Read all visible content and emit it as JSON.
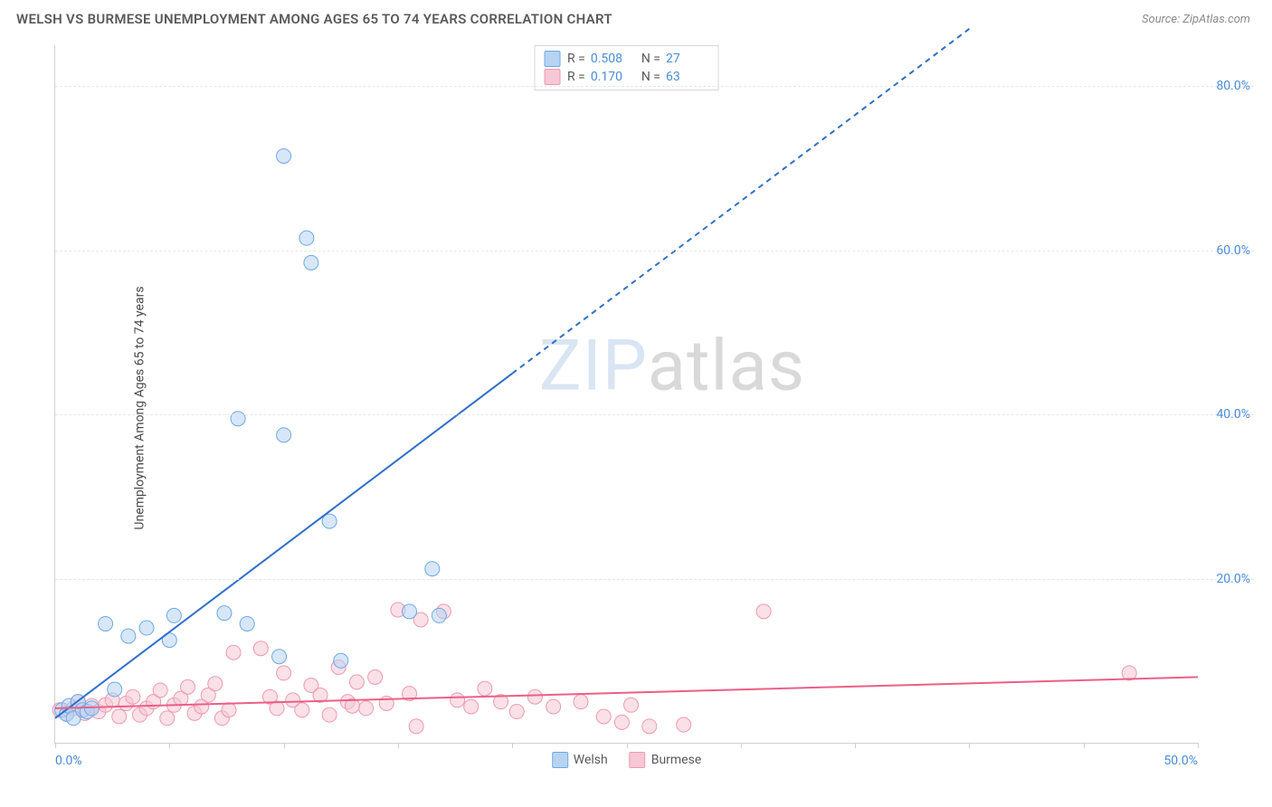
{
  "header": {
    "title": "WELSH VS BURMESE UNEMPLOYMENT AMONG AGES 65 TO 74 YEARS CORRELATION CHART",
    "source": "Source: ZipAtlas.com"
  },
  "watermark": {
    "part1": "ZIP",
    "part2": "atlas"
  },
  "chart": {
    "type": "scatter",
    "y_label": "Unemployment Among Ages 65 to 74 years",
    "xlim": [
      0,
      50
    ],
    "ylim": [
      0,
      85
    ],
    "x_ticks": [
      0,
      5,
      10,
      15,
      20,
      25,
      30,
      35,
      40,
      45,
      50
    ],
    "x_tick_labels": {
      "0": "0.0%",
      "50": "50.0%"
    },
    "y_grid": [
      20,
      40,
      60,
      80
    ],
    "y_tick_labels": {
      "20": "20.0%",
      "40": "40.0%",
      "60": "60.0%",
      "80": "80.0%"
    },
    "background_color": "#ffffff",
    "grid_color": "#e8e8e8",
    "axis_color": "#d0d0d0",
    "tick_label_color": "#4a8cd8",
    "label_fontsize": 14,
    "marker_radius": 8,
    "marker_opacity": 0.55,
    "line_width": 2,
    "series": [
      {
        "name": "Welsh",
        "color_fill": "#b7d3f2",
        "color_stroke": "#6ea8e8",
        "R": "0.508",
        "N": "27",
        "trend": {
          "x1": 0,
          "y1": 3,
          "x2": 20,
          "y2": 45,
          "dash_from_x": 20,
          "x3": 40,
          "y3": 87
        },
        "line_color": "#2f6fc9",
        "points": [
          [
            0.3,
            4
          ],
          [
            0.5,
            3.5
          ],
          [
            0.6,
            4.5
          ],
          [
            0.8,
            3
          ],
          [
            1,
            5
          ],
          [
            1.2,
            4
          ],
          [
            1.4,
            3.8
          ],
          [
            1.6,
            4.2
          ],
          [
            2.2,
            14.5
          ],
          [
            2.6,
            6.5
          ],
          [
            3.2,
            13
          ],
          [
            4.0,
            14
          ],
          [
            5.0,
            12.5
          ],
          [
            5.2,
            15.5
          ],
          [
            7.4,
            15.8
          ],
          [
            8.4,
            14.5
          ],
          [
            8.0,
            39.5
          ],
          [
            9.8,
            10.5
          ],
          [
            10.0,
            37.5
          ],
          [
            11.2,
            58.5
          ],
          [
            10.0,
            71.5
          ],
          [
            11.0,
            61.5
          ],
          [
            12.5,
            10.0
          ],
          [
            12.0,
            27.0
          ],
          [
            15.5,
            16.0
          ],
          [
            16.5,
            21.2
          ],
          [
            16.8,
            15.5
          ]
        ]
      },
      {
        "name": "Burmese",
        "color_fill": "#f6c7d4",
        "color_stroke": "#ec9ab1",
        "R": "0.170",
        "N": "63",
        "trend": {
          "x1": 0,
          "y1": 4.2,
          "x2": 50,
          "y2": 8.0
        },
        "line_color": "#ec5f86",
        "points": [
          [
            0.2,
            4
          ],
          [
            0.5,
            3.5
          ],
          [
            0.8,
            4.2
          ],
          [
            1.0,
            5
          ],
          [
            1.3,
            3.6
          ],
          [
            1.6,
            4.5
          ],
          [
            1.9,
            3.8
          ],
          [
            2.2,
            4.6
          ],
          [
            2.5,
            5.2
          ],
          [
            2.8,
            3.2
          ],
          [
            3.1,
            4.8
          ],
          [
            3.4,
            5.6
          ],
          [
            3.7,
            3.4
          ],
          [
            4.0,
            4.2
          ],
          [
            4.3,
            5.0
          ],
          [
            4.6,
            6.4
          ],
          [
            4.9,
            3.0
          ],
          [
            5.2,
            4.6
          ],
          [
            5.5,
            5.4
          ],
          [
            5.8,
            6.8
          ],
          [
            6.1,
            3.6
          ],
          [
            6.4,
            4.4
          ],
          [
            6.7,
            5.8
          ],
          [
            7.0,
            7.2
          ],
          [
            7.3,
            3.0
          ],
          [
            7.6,
            4.0
          ],
          [
            7.8,
            11.0
          ],
          [
            9.0,
            11.5
          ],
          [
            9.4,
            5.6
          ],
          [
            9.7,
            4.2
          ],
          [
            10.0,
            8.5
          ],
          [
            10.4,
            5.2
          ],
          [
            10.8,
            4.0
          ],
          [
            11.2,
            7.0
          ],
          [
            11.6,
            5.8
          ],
          [
            12.0,
            3.4
          ],
          [
            12.4,
            9.2
          ],
          [
            12.8,
            5.0
          ],
          [
            13.2,
            7.4
          ],
          [
            13.6,
            4.2
          ],
          [
            14.0,
            8.0
          ],
          [
            14.5,
            4.8
          ],
          [
            15.0,
            16.2
          ],
          [
            15.5,
            6.0
          ],
          [
            16.0,
            15.0
          ],
          [
            17.0,
            16.0
          ],
          [
            17.6,
            5.2
          ],
          [
            18.2,
            4.4
          ],
          [
            18.8,
            6.6
          ],
          [
            19.5,
            5.0
          ],
          [
            20.2,
            3.8
          ],
          [
            21.0,
            5.6
          ],
          [
            21.8,
            4.4
          ],
          [
            23.0,
            5.0
          ],
          [
            24.0,
            3.2
          ],
          [
            24.8,
            2.5
          ],
          [
            25.2,
            4.6
          ],
          [
            26.0,
            2.0
          ],
          [
            27.5,
            2.2
          ],
          [
            31.0,
            16.0
          ],
          [
            47.0,
            8.5
          ],
          [
            15.8,
            2.0
          ],
          [
            13.0,
            4.5
          ]
        ]
      }
    ],
    "stats_box": {
      "r_label": "R =",
      "n_label": "N ="
    },
    "legend": [
      {
        "label": "Welsh",
        "fill": "#b7d3f2",
        "stroke": "#6ea8e8"
      },
      {
        "label": "Burmese",
        "fill": "#f6c7d4",
        "stroke": "#ec9ab1"
      }
    ]
  }
}
